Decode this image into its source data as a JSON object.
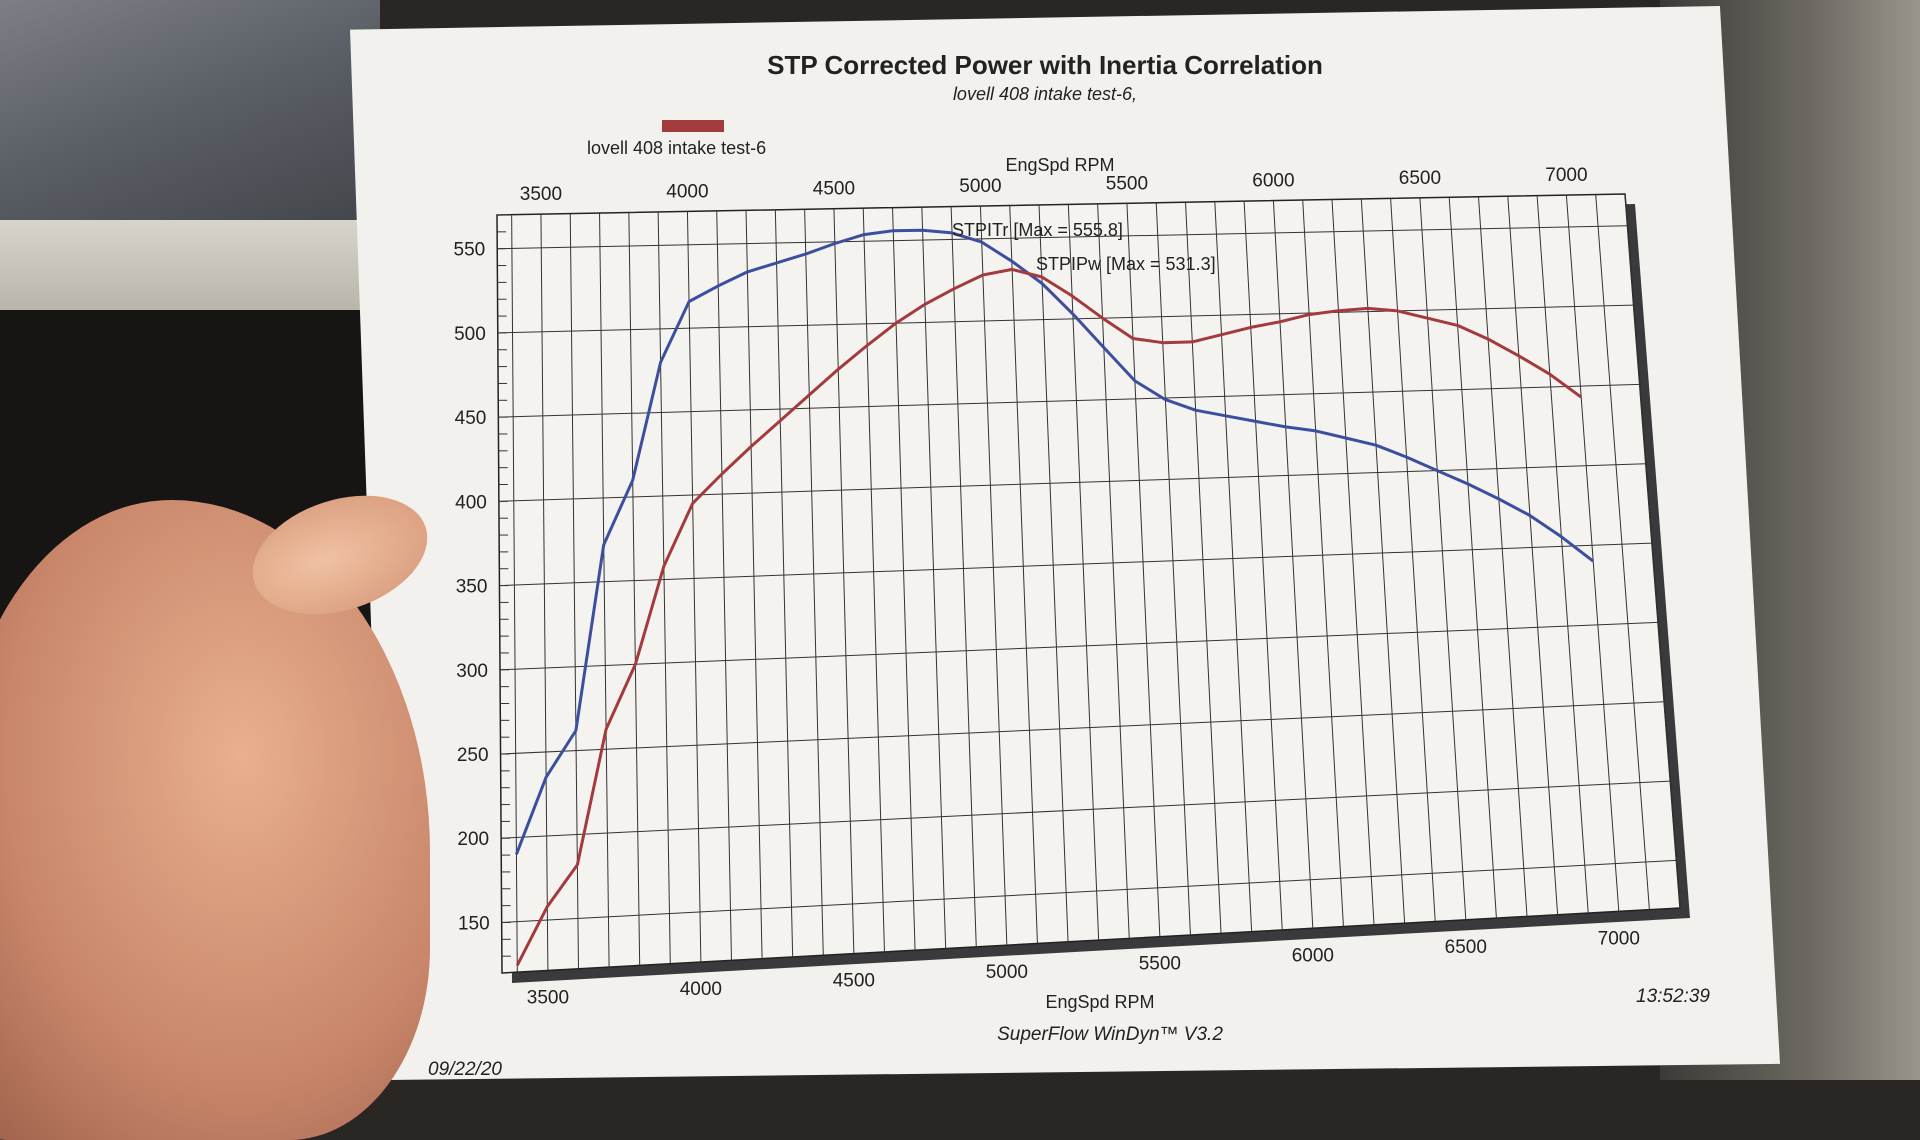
{
  "chart_data": {
    "type": "line",
    "title": "STP Corrected Power with Inertia Correlation",
    "subtitle": "lovell 408 intake test-6,",
    "xlabel": "EngSpd RPM",
    "ylabel": "",
    "xlim": [
      3350,
      7200
    ],
    "ylim": [
      120,
      570
    ],
    "x_ticks": [
      3500,
      4000,
      4500,
      5000,
      5500,
      6000,
      6500,
      7000
    ],
    "y_ticks": [
      150,
      200,
      250,
      300,
      350,
      400,
      450,
      500,
      550
    ],
    "legend": {
      "label": "lovell 408 intake test-6",
      "color": "#a33a3d",
      "position": "top-left"
    },
    "grid": true,
    "series": [
      {
        "name": "STPITr",
        "annotation": "STPITr [Max = 555.8]",
        "color": "#3c4f9e",
        "x": [
          3400,
          3500,
          3600,
          3700,
          3800,
          3900,
          4000,
          4100,
          4200,
          4300,
          4400,
          4500,
          4600,
          4700,
          4800,
          4900,
          5000,
          5100,
          5200,
          5300,
          5400,
          5500,
          5600,
          5700,
          5800,
          5900,
          6000,
          6100,
          6200,
          6300,
          6400,
          6500,
          6600,
          6700,
          6800,
          6900,
          7000
        ],
        "y": [
          190,
          235,
          262,
          372,
          410,
          480,
          516,
          525,
          533,
          538,
          543,
          549,
          554,
          556,
          556,
          554,
          548,
          536,
          522,
          503,
          482,
          461,
          449,
          442,
          438,
          434,
          430,
          427,
          422,
          417,
          409,
          400,
          391,
          381,
          370,
          356,
          340
        ]
      },
      {
        "name": "STPIPw",
        "annotation": "STPIPw [Max = 531.3]",
        "color": "#a33a3d",
        "x": [
          3400,
          3500,
          3600,
          3700,
          3800,
          3900,
          4000,
          4100,
          4200,
          4300,
          4400,
          4500,
          4600,
          4700,
          4800,
          4900,
          5000,
          5100,
          5200,
          5300,
          5400,
          5500,
          5600,
          5700,
          5800,
          5900,
          6000,
          6100,
          6200,
          6300,
          6400,
          6500,
          6600,
          6700,
          6800,
          6900,
          7000
        ],
        "y": [
          124,
          158,
          182,
          262,
          300,
          358,
          395,
          412,
          428,
          443,
          458,
          473,
          487,
          500,
          511,
          520,
          528,
          531,
          526,
          514,
          500,
          487,
          484,
          484,
          488,
          492,
          495,
          499,
          501,
          502,
          500,
          495,
          490,
          481,
          470,
          458,
          443
        ]
      }
    ]
  },
  "footer": {
    "time": "13:52:39",
    "software": "SuperFlow WinDyn™ V3.2",
    "date": "09/22/20"
  }
}
